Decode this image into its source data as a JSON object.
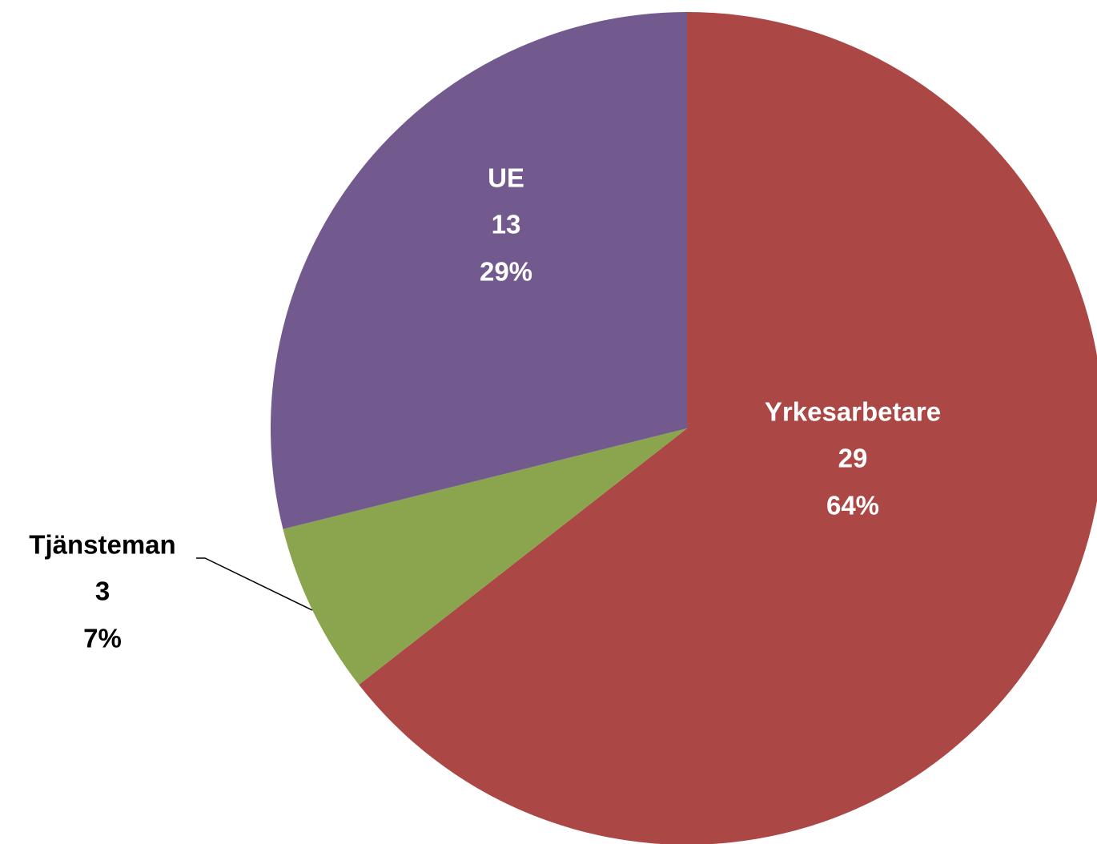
{
  "chart_data": {
    "type": "pie",
    "categories": [
      "Yrkesarbetare",
      "Tjänsteman",
      "UE"
    ],
    "values": [
      29,
      3,
      13
    ],
    "percent_labels": [
      "64%",
      "7%",
      "29%"
    ],
    "colors": [
      "#ab4745",
      "#8ba54e",
      "#725a8e"
    ]
  }
}
